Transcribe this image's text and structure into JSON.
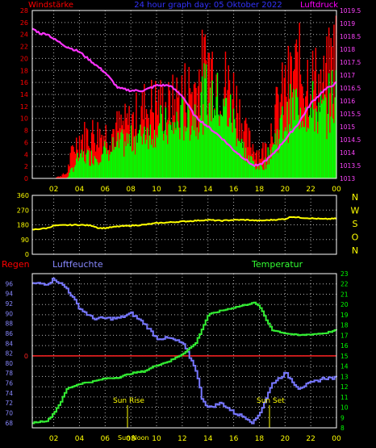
{
  "header": {
    "left_label": "Windstärke",
    "center_label": "24 hour graph day: 05 Oktober 2022",
    "right_label": "Luftdruck"
  },
  "colors": {
    "background": "#000000",
    "plot_border": "#ffffff",
    "grid": "#ffffff",
    "gust": "#ff0000",
    "wind": "#00ff00",
    "pressure": "#ff33ff",
    "direction": "#ffff00",
    "humidity": "#7777ff",
    "temperature": "#33ee33",
    "rain": "#ff2222",
    "sun": "#ffff00",
    "left_ticks_wind": "#ff0000",
    "right_ticks_pressure": "#ff44ff",
    "direction_ticks": "#ffff00",
    "hum_ticks": "#8888ff",
    "temp_ticks": "#00ff00",
    "x_ticks": "#ffff00"
  },
  "x_ticks": [
    "02",
    "04",
    "06",
    "08",
    "10",
    "12",
    "14",
    "16",
    "18",
    "20",
    "22",
    "00"
  ],
  "direction_labels": [
    "N",
    "W",
    "S",
    "O",
    "N"
  ],
  "lower": {
    "rain_label": "Regen",
    "humidity_label": "Luftfeuchte",
    "temperature_label": "Temperatur",
    "sunrise_label": "Sun Rise",
    "sunset_label": "Sun Set",
    "noon_label": "Sun Noon"
  },
  "chart_data": [
    {
      "type": "bar",
      "title": "24 hour graph day: 05 Oktober 2022",
      "xlabel": "",
      "ylabel": "Windstärke",
      "x_range": [
        0.33,
        24.0
      ],
      "ylim": [
        0,
        28
      ],
      "y_ticks": [
        0,
        2,
        4,
        6,
        8,
        10,
        12,
        14,
        16,
        18,
        20,
        22,
        24,
        26,
        28
      ],
      "series": [
        {
          "name": "Windstärke",
          "x": [
            0.5,
            2.0,
            3.0,
            3.5,
            4.0,
            5.0,
            6.0,
            7.0,
            8.0,
            9.0,
            10.0,
            11.0,
            12.0,
            13.0,
            13.5,
            14.0,
            15.0,
            16.0,
            16.5,
            17.0,
            18.0,
            18.5,
            19.0,
            20.0,
            21.0,
            22.0,
            23.0,
            24.0
          ],
          "gust": [
            0,
            0,
            1,
            6,
            8,
            9,
            9,
            10,
            11,
            14,
            15,
            14,
            17,
            18,
            21,
            23,
            20,
            17,
            13,
            8,
            5,
            6,
            11,
            18,
            22,
            20,
            18,
            26
          ],
          "avg": [
            0,
            0,
            0,
            2,
            4,
            4,
            5,
            6,
            7,
            9,
            10,
            9,
            11,
            12,
            14,
            16,
            14,
            11,
            8,
            4,
            2,
            3,
            6,
            11,
            14,
            13,
            12,
            16
          ]
        }
      ],
      "y2_label": "Luftdruck",
      "y2lim": [
        1013.0,
        1019.5
      ],
      "y2_ticks": [
        1013.0,
        1013.5,
        1014.0,
        1014.5,
        1015.0,
        1015.5,
        1016.0,
        1016.5,
        1017.0,
        1017.5,
        1018.0,
        1018.5,
        1019.0,
        1019.5
      ],
      "pressure": {
        "name": "Luftdruck",
        "x": [
          0.33,
          1.0,
          1.5,
          2.0,
          3.0,
          4.0,
          5.0,
          6.0,
          6.5,
          7.0,
          8.0,
          9.0,
          10.0,
          10.5,
          11.0,
          12.0,
          13.0,
          14.0,
          15.0,
          16.0,
          17.0,
          17.5,
          18.0,
          19.0,
          20.0,
          21.0,
          22.0,
          23.0,
          24.0
        ],
        "y": [
          1018.8,
          1018.6,
          1018.6,
          1018.4,
          1018.1,
          1017.9,
          1017.5,
          1017.1,
          1016.8,
          1016.5,
          1016.4,
          1016.4,
          1016.6,
          1016.6,
          1016.6,
          1016.2,
          1015.4,
          1015.0,
          1014.6,
          1014.1,
          1013.7,
          1013.5,
          1013.5,
          1013.9,
          1014.5,
          1015.1,
          1015.9,
          1016.4,
          1016.7
        ]
      }
    },
    {
      "type": "line",
      "title": "",
      "xlabel": "",
      "ylabel": "",
      "x_range": [
        0.33,
        24.0
      ],
      "ylim": [
        0,
        360
      ],
      "y_ticks": [
        0,
        90,
        180,
        270,
        360
      ],
      "series": [
        {
          "name": "",
          "x": [
            0.33,
            1.5,
            2.0,
            3.0,
            4.0,
            5.0,
            5.5,
            6.0,
            7.0,
            8.0,
            9.0,
            10.0,
            11.0,
            12.0,
            13.0,
            14.0,
            15.0,
            16.0,
            17.0,
            18.0,
            19.0,
            20.0,
            20.5,
            21.0,
            22.0,
            23.0,
            24.0
          ],
          "y": [
            150,
            160,
            175,
            178,
            180,
            175,
            160,
            160,
            170,
            175,
            180,
            190,
            195,
            200,
            205,
            210,
            205,
            210,
            210,
            205,
            210,
            215,
            230,
            225,
            220,
            215,
            218
          ]
        }
      ]
    },
    {
      "type": "line",
      "title": "",
      "xlabel": "",
      "ylabel": "Luftfeuchte",
      "x_range": [
        0.33,
        24.0
      ],
      "ylim": [
        67,
        98
      ],
      "y_ticks": [
        68,
        70,
        72,
        74,
        76,
        78,
        80,
        82,
        84,
        86,
        88,
        90,
        92,
        94,
        96
      ],
      "y2_label": "Temperatur",
      "y2lim": [
        8,
        23
      ],
      "y2_ticks": [
        8,
        9,
        10,
        11,
        12,
        13,
        14,
        15,
        16,
        17,
        18,
        19,
        20,
        21,
        22,
        23
      ],
      "rain_zero": 0,
      "series": [
        {
          "name": "Luftfeuchte",
          "x": [
            0.33,
            1.5,
            2.0,
            2.5,
            3.0,
            4.0,
            5.0,
            6.0,
            7.0,
            8.0,
            8.5,
            9.0,
            10.0,
            11.0,
            12.0,
            13.0,
            13.5,
            14.0,
            15.0,
            16.0,
            17.0,
            17.5,
            18.0,
            19.0,
            20.0,
            21.0,
            22.0,
            23.0,
            24.0
          ],
          "y": [
            96,
            96,
            97,
            96,
            95,
            91,
            89,
            89,
            89,
            90,
            89,
            88,
            85,
            85,
            84,
            79,
            73,
            71,
            72,
            70,
            69,
            68,
            70,
            76,
            78,
            75,
            76,
            77,
            77
          ]
        },
        {
          "name": "Temperatur",
          "x": [
            0.33,
            1.5,
            2.0,
            2.5,
            3.0,
            4.0,
            5.0,
            6.0,
            7.0,
            8.0,
            9.0,
            10.0,
            11.0,
            12.0,
            13.0,
            14.0,
            15.0,
            16.0,
            17.0,
            17.5,
            18.0,
            18.5,
            19.0,
            20.0,
            21.0,
            22.0,
            23.0,
            24.0
          ],
          "y": [
            8.5,
            8.7,
            9.5,
            10.5,
            11.8,
            12.3,
            12.5,
            12.8,
            12.9,
            13.3,
            13.5,
            14.1,
            14.5,
            15.2,
            16.2,
            19.0,
            19.4,
            19.7,
            20.0,
            20.2,
            19.8,
            18.5,
            17.5,
            17.2,
            17.0,
            17.1,
            17.2,
            17.5
          ]
        }
      ]
    }
  ]
}
